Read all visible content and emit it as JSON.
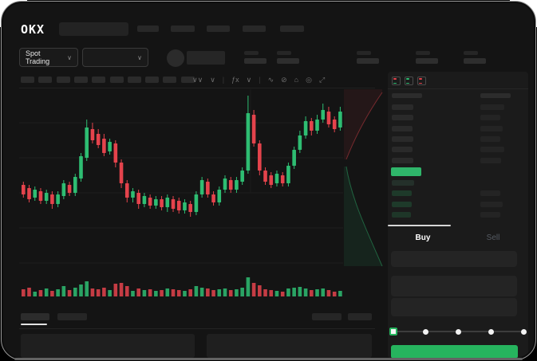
{
  "app": {
    "brand": "OKX"
  },
  "colors": {
    "background": "#141414",
    "panel": "#1b1b1b",
    "candle_green": "#2ebd72",
    "candle_red": "#e4434c",
    "last_price_green": "#2fb56a",
    "button_green": "#26b45e"
  },
  "top_nav": {
    "nav_placeholder_count": 5
  },
  "market_selector": {
    "label": "Spot Trading",
    "chevron": "∨"
  },
  "pair_selector": {
    "chevron": "∨"
  },
  "header_stats": {
    "pair_count": 5
  },
  "toolbar": {
    "timeframe_placeholder_count": 10,
    "icons": [
      {
        "name": "chart-type-icon",
        "glyph": "∨∨"
      },
      {
        "name": "chevron-down-icon",
        "glyph": "∨"
      },
      {
        "name": "divider",
        "glyph": "|"
      },
      {
        "name": "indicators-icon",
        "glyph": "ƒx"
      },
      {
        "name": "chevron-down-icon",
        "glyph": "∨"
      },
      {
        "name": "divider",
        "glyph": "|"
      },
      {
        "name": "line-tools-icon",
        "glyph": "∿"
      },
      {
        "name": "compare-icon",
        "glyph": "⊘"
      },
      {
        "name": "snapshot-icon",
        "glyph": "⌂"
      },
      {
        "name": "settings-icon",
        "glyph": "◎"
      },
      {
        "name": "fullscreen-icon",
        "glyph": "⤢"
      }
    ]
  },
  "chart_data": {
    "type": "candlestick",
    "ylim": [
      0,
      220
    ],
    "grid": true,
    "gridline_count": 5,
    "candles_ohlc": [
      [
        102,
        106,
        86,
        90
      ],
      [
        98,
        102,
        80,
        84
      ],
      [
        86,
        100,
        82,
        96
      ],
      [
        94,
        98,
        78,
        82
      ],
      [
        82,
        96,
        78,
        92
      ],
      [
        90,
        94,
        72,
        78
      ],
      [
        78,
        94,
        74,
        90
      ],
      [
        88,
        108,
        84,
        104
      ],
      [
        102,
        106,
        88,
        92
      ],
      [
        92,
        116,
        88,
        112
      ],
      [
        110,
        142,
        106,
        138
      ],
      [
        136,
        184,
        132,
        174
      ],
      [
        172,
        180,
        154,
        158
      ],
      [
        166,
        172,
        148,
        152
      ],
      [
        160,
        166,
        138,
        142
      ],
      [
        144,
        160,
        140,
        156
      ],
      [
        154,
        158,
        124,
        130
      ],
      [
        130,
        134,
        98,
        104
      ],
      [
        104,
        108,
        80,
        86
      ],
      [
        86,
        98,
        80,
        94
      ],
      [
        92,
        96,
        72,
        78
      ],
      [
        78,
        92,
        74,
        88
      ],
      [
        86,
        90,
        72,
        76
      ],
      [
        76,
        88,
        72,
        84
      ],
      [
        84,
        88,
        70,
        74
      ],
      [
        74,
        90,
        68,
        86
      ],
      [
        84,
        88,
        68,
        72
      ],
      [
        82,
        86,
        66,
        70
      ],
      [
        70,
        84,
        66,
        80
      ],
      [
        78,
        82,
        62,
        68
      ],
      [
        68,
        94,
        64,
        90
      ],
      [
        90,
        112,
        86,
        108
      ],
      [
        106,
        110,
        86,
        90
      ],
      [
        90,
        94,
        76,
        80
      ],
      [
        80,
        100,
        76,
        96
      ],
      [
        96,
        114,
        92,
        110
      ],
      [
        108,
        112,
        92,
        96
      ],
      [
        96,
        112,
        92,
        108
      ],
      [
        106,
        124,
        102,
        120
      ],
      [
        120,
        214,
        116,
        192
      ],
      [
        190,
        196,
        150,
        154
      ],
      [
        154,
        158,
        114,
        120
      ],
      [
        120,
        124,
        102,
        106
      ],
      [
        114,
        118,
        98,
        102
      ],
      [
        104,
        120,
        100,
        116
      ],
      [
        114,
        118,
        100,
        104
      ],
      [
        104,
        130,
        100,
        126
      ],
      [
        126,
        150,
        122,
        146
      ],
      [
        146,
        170,
        142,
        164
      ],
      [
        164,
        188,
        160,
        182
      ],
      [
        182,
        186,
        164,
        170
      ],
      [
        170,
        190,
        166,
        184
      ],
      [
        184,
        204,
        180,
        196
      ],
      [
        194,
        200,
        174,
        178
      ],
      [
        184,
        188,
        168,
        172
      ],
      [
        174,
        200,
        170,
        194
      ]
    ],
    "volumes": [
      9,
      11,
      6,
      8,
      10,
      7,
      9,
      13,
      8,
      11,
      15,
      19,
      10,
      9,
      11,
      8,
      16,
      17,
      13,
      7,
      10,
      8,
      9,
      7,
      8,
      10,
      9,
      8,
      7,
      9,
      13,
      11,
      10,
      8,
      9,
      10,
      8,
      9,
      11,
      24,
      17,
      14,
      9,
      8,
      7,
      6,
      10,
      11,
      12,
      10,
      8,
      9,
      10,
      8,
      6,
      7
    ]
  },
  "depth_chart": {
    "type": "area",
    "orientation": "vertical",
    "ask_side": "top",
    "bid_side": "bottom"
  },
  "orderbook": {
    "layout_icons": [
      {
        "name": "orderbook-split-view-icon"
      },
      {
        "name": "orderbook-buy-view-icon"
      },
      {
        "name": "orderbook-sell-view-icon"
      }
    ],
    "ask_rows": 6,
    "bid_rows": 4,
    "ask_left_w": [
      27,
      27,
      26,
      27,
      26,
      27
    ],
    "ask_right_w": [
      30,
      25,
      28,
      25,
      30,
      26
    ],
    "bid_left_w": [
      28,
      25,
      25,
      24
    ],
    "bid_right_w": [
      0,
      25,
      28,
      25
    ],
    "last_price_highlight": "green"
  },
  "trade_panel": {
    "tabs": [
      {
        "label": "Buy",
        "active": true
      },
      {
        "label": "Sell",
        "active": false
      }
    ],
    "field_count": 3,
    "slider": {
      "stops": 5,
      "active_stop": 0
    }
  },
  "bottom_section": {
    "tab_placeholder_count": 2,
    "right_placeholder_count": 2,
    "panel_count": 2
  }
}
